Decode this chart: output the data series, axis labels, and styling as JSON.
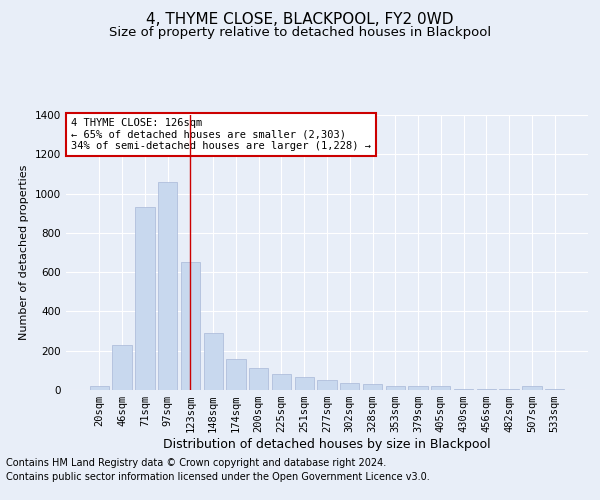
{
  "title": "4, THYME CLOSE, BLACKPOOL, FY2 0WD",
  "subtitle": "Size of property relative to detached houses in Blackpool",
  "xlabel": "Distribution of detached houses by size in Blackpool",
  "ylabel": "Number of detached properties",
  "categories": [
    "20sqm",
    "46sqm",
    "71sqm",
    "97sqm",
    "123sqm",
    "148sqm",
    "174sqm",
    "200sqm",
    "225sqm",
    "251sqm",
    "277sqm",
    "302sqm",
    "328sqm",
    "353sqm",
    "379sqm",
    "405sqm",
    "430sqm",
    "456sqm",
    "482sqm",
    "507sqm",
    "533sqm"
  ],
  "values": [
    20,
    230,
    930,
    1060,
    650,
    290,
    160,
    110,
    80,
    65,
    50,
    35,
    30,
    20,
    20,
    18,
    5,
    5,
    5,
    20,
    5
  ],
  "bar_color": "#c8d8ee",
  "bar_edge_color": "#a8b8d8",
  "marker_index": 4,
  "marker_color": "#cc0000",
  "annotation_text": "4 THYME CLOSE: 126sqm\n← 65% of detached houses are smaller (2,303)\n34% of semi-detached houses are larger (1,228) →",
  "annotation_box_color": "#ffffff",
  "annotation_box_edge": "#cc0000",
  "ylim": [
    0,
    1400
  ],
  "yticks": [
    0,
    200,
    400,
    600,
    800,
    1000,
    1200,
    1400
  ],
  "bg_color": "#e8eef8",
  "plot_bg_color": "#e8eef8",
  "footer1": "Contains HM Land Registry data © Crown copyright and database right 2024.",
  "footer2": "Contains public sector information licensed under the Open Government Licence v3.0.",
  "title_fontsize": 11,
  "subtitle_fontsize": 9.5,
  "xlabel_fontsize": 9,
  "ylabel_fontsize": 8,
  "tick_fontsize": 7.5,
  "footer_fontsize": 7
}
